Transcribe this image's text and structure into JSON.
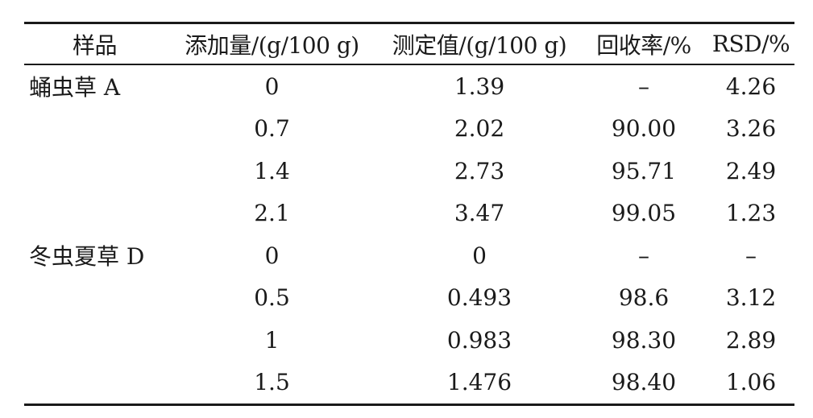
{
  "table": {
    "headers": [
      "样品",
      "添加量/(g/100 g)",
      "测定值/(g/100 g)",
      "回收率/%",
      "RSD/%"
    ],
    "rows": [
      {
        "sample": "蛹虫草 A",
        "added": "0",
        "measured": "1.39",
        "recovery": "–",
        "rsd": "4.26"
      },
      {
        "sample": "",
        "added": "0.7",
        "measured": "2.02",
        "recovery": "90.00",
        "rsd": "3.26"
      },
      {
        "sample": "",
        "added": "1.4",
        "measured": "2.73",
        "recovery": "95.71",
        "rsd": "2.49"
      },
      {
        "sample": "",
        "added": "2.1",
        "measured": "3.47",
        "recovery": "99.05",
        "rsd": "1.23"
      },
      {
        "sample": "冬虫夏草 D",
        "added": "0",
        "measured": "0",
        "recovery": "–",
        "rsd": "–"
      },
      {
        "sample": "",
        "added": "0.5",
        "measured": "0.493",
        "recovery": "98.6",
        "rsd": "3.12"
      },
      {
        "sample": "",
        "added": "1",
        "measured": "0.983",
        "recovery": "98.30",
        "rsd": "2.89"
      },
      {
        "sample": "",
        "added": "1.5",
        "measured": "1.476",
        "recovery": "98.40",
        "rsd": "1.06"
      }
    ]
  }
}
